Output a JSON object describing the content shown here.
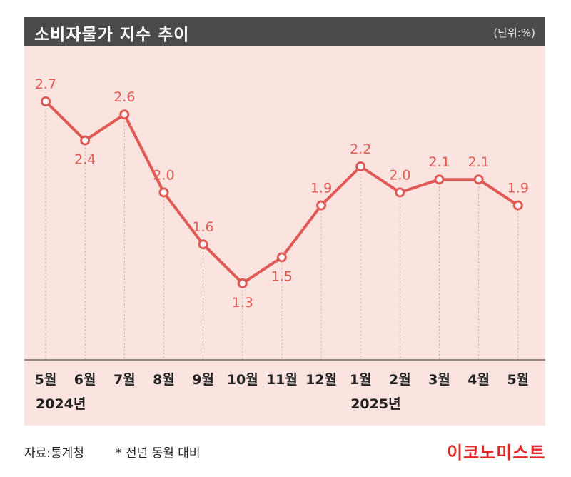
{
  "header": {
    "title": "소비자물가 지수 추이",
    "unit": "(단위:%)"
  },
  "chart_data": {
    "type": "line",
    "title": "소비자물가 지수 추이",
    "unit": "(단위:%)",
    "categories": [
      "5월",
      "6월",
      "7월",
      "8월",
      "9월",
      "10월",
      "11월",
      "12월",
      "1월",
      "2월",
      "3월",
      "4월",
      "5월"
    ],
    "year_labels": [
      {
        "category_index": 0,
        "label": "2024년"
      },
      {
        "category_index": 8,
        "label": "2025년"
      }
    ],
    "series": [
      {
        "values": [
          2.7,
          2.4,
          2.6,
          2.0,
          1.6,
          1.3,
          1.5,
          1.9,
          2.2,
          2.0,
          2.1,
          2.1,
          1.9
        ]
      }
    ],
    "data_labels": [
      "2.7",
      "2.4",
      "2.6",
      "2.0",
      "1.6",
      "1.3",
      "1.5",
      "1.9",
      "2.2",
      "2.0",
      "2.1",
      "2.1",
      "1.9"
    ],
    "label_positions": [
      "above",
      "below",
      "above",
      "above",
      "above",
      "below",
      "below",
      "above",
      "above",
      "above",
      "above",
      "above",
      "above"
    ],
    "line_color": "#e05a55",
    "grid": "dotted vertical"
  },
  "footer": {
    "source": "자료:통계청",
    "note": "* 전년 동월 대비",
    "logo": "이코노미스트"
  }
}
